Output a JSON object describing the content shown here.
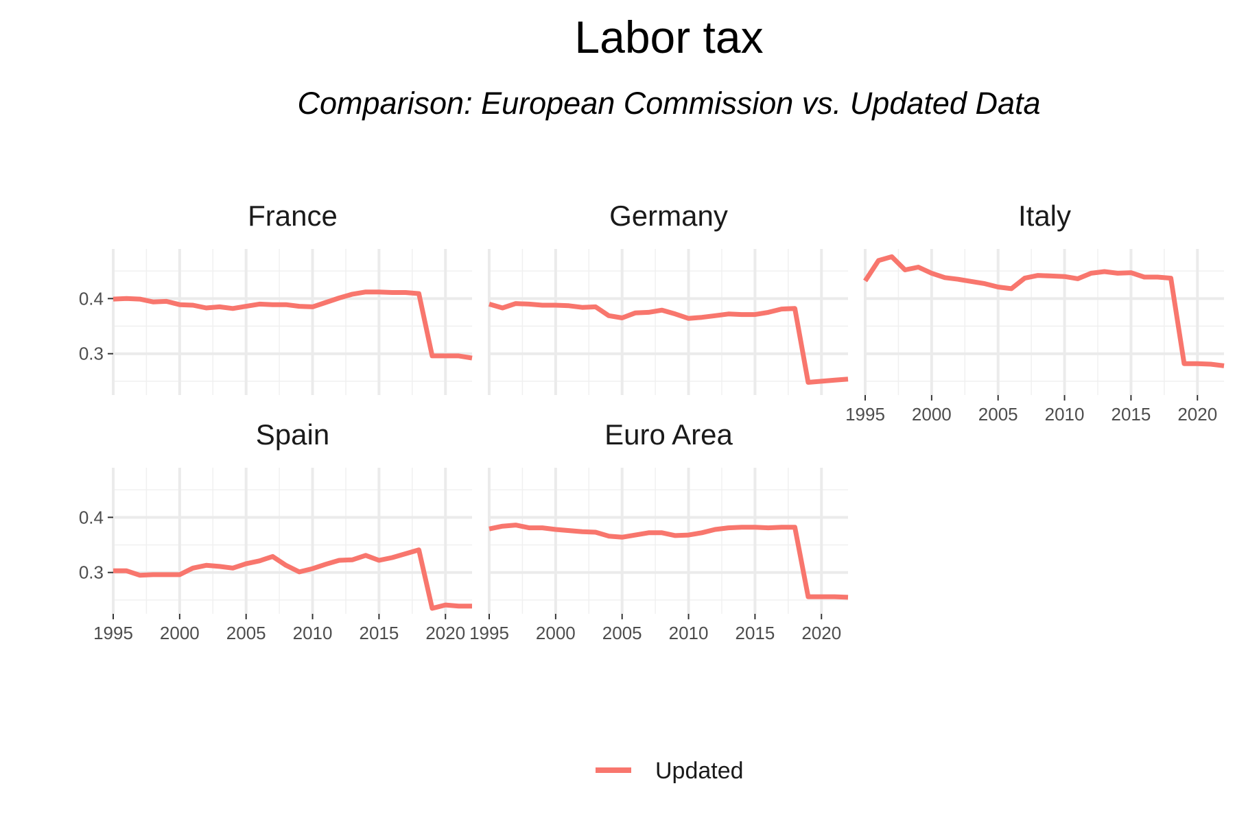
{
  "title": "Labor tax",
  "subtitle": "Comparison: European Commission vs. Updated Data",
  "legend": {
    "label": "Updated",
    "color": "#F8766D",
    "position": "bottom"
  },
  "chart_data": {
    "type": "line",
    "layout": "facet-wrap 3x2",
    "xlim": [
      1995,
      2022
    ],
    "ylim": [
      0.225,
      0.49
    ],
    "x_ticks": [
      1995,
      2000,
      2005,
      2010,
      2015,
      2020
    ],
    "y_ticks": [
      0.3,
      0.4
    ],
    "y_tick_labels": [
      "0.3",
      "0.4"
    ],
    "grid": true,
    "panels": [
      {
        "name": "France",
        "series": [
          {
            "name": "Updated",
            "x": [
              1995,
              1996,
              1997,
              1998,
              1999,
              2000,
              2001,
              2002,
              2003,
              2004,
              2005,
              2006,
              2007,
              2008,
              2009,
              2010,
              2011,
              2012,
              2013,
              2014,
              2015,
              2016,
              2017,
              2018,
              2019,
              2020,
              2021,
              2022
            ],
            "values": [
              0.399,
              0.4,
              0.399,
              0.394,
              0.395,
              0.389,
              0.388,
              0.383,
              0.385,
              0.382,
              0.386,
              0.39,
              0.389,
              0.389,
              0.386,
              0.385,
              0.393,
              0.401,
              0.408,
              0.412,
              0.412,
              0.411,
              0.411,
              0.409,
              0.296,
              0.296,
              0.296,
              0.292
            ]
          }
        ]
      },
      {
        "name": "Germany",
        "series": [
          {
            "name": "Updated",
            "x": [
              1995,
              1996,
              1997,
              1998,
              1999,
              2000,
              2001,
              2002,
              2003,
              2004,
              2005,
              2006,
              2007,
              2008,
              2009,
              2010,
              2011,
              2012,
              2013,
              2014,
              2015,
              2016,
              2017,
              2018,
              2019,
              2020,
              2021,
              2022
            ],
            "values": [
              0.39,
              0.383,
              0.391,
              0.39,
              0.388,
              0.388,
              0.387,
              0.384,
              0.385,
              0.369,
              0.365,
              0.374,
              0.375,
              0.379,
              0.372,
              0.364,
              0.366,
              0.369,
              0.372,
              0.371,
              0.371,
              0.375,
              0.381,
              0.382,
              0.248,
              0.25,
              0.252,
              0.254
            ]
          }
        ]
      },
      {
        "name": "Italy",
        "series": [
          {
            "name": "Updated",
            "x": [
              1995,
              1996,
              1997,
              1998,
              1999,
              2000,
              2001,
              2002,
              2003,
              2004,
              2005,
              2006,
              2007,
              2008,
              2009,
              2010,
              2011,
              2012,
              2013,
              2014,
              2015,
              2016,
              2017,
              2018,
              2019,
              2020,
              2021,
              2022
            ],
            "values": [
              0.432,
              0.469,
              0.476,
              0.452,
              0.457,
              0.446,
              0.438,
              0.435,
              0.431,
              0.427,
              0.421,
              0.418,
              0.437,
              0.442,
              0.441,
              0.44,
              0.436,
              0.446,
              0.449,
              0.446,
              0.447,
              0.439,
              0.439,
              0.437,
              0.282,
              0.282,
              0.281,
              0.278
            ]
          }
        ]
      },
      {
        "name": "Spain",
        "series": [
          {
            "name": "Updated",
            "x": [
              1995,
              1996,
              1997,
              1998,
              1999,
              2000,
              2001,
              2002,
              2003,
              2004,
              2005,
              2006,
              2007,
              2008,
              2009,
              2010,
              2011,
              2012,
              2013,
              2014,
              2015,
              2016,
              2017,
              2018,
              2019,
              2020,
              2021,
              2022
            ],
            "values": [
              0.303,
              0.303,
              0.295,
              0.296,
              0.296,
              0.296,
              0.308,
              0.313,
              0.311,
              0.308,
              0.316,
              0.321,
              0.329,
              0.313,
              0.301,
              0.307,
              0.315,
              0.322,
              0.323,
              0.331,
              0.322,
              0.327,
              0.334,
              0.341,
              0.235,
              0.241,
              0.239,
              0.239
            ]
          }
        ]
      },
      {
        "name": "Euro Area",
        "series": [
          {
            "name": "Updated",
            "x": [
              1995,
              1996,
              1997,
              1998,
              1999,
              2000,
              2001,
              2002,
              2003,
              2004,
              2005,
              2006,
              2007,
              2008,
              2009,
              2010,
              2011,
              2012,
              2013,
              2014,
              2015,
              2016,
              2017,
              2018,
              2019,
              2020,
              2021,
              2022
            ],
            "values": [
              0.379,
              0.384,
              0.386,
              0.381,
              0.381,
              0.378,
              0.376,
              0.374,
              0.373,
              0.366,
              0.364,
              0.368,
              0.372,
              0.372,
              0.367,
              0.368,
              0.372,
              0.378,
              0.381,
              0.382,
              0.382,
              0.381,
              0.382,
              0.382,
              0.256,
              0.256,
              0.256,
              0.255
            ]
          }
        ]
      }
    ]
  }
}
